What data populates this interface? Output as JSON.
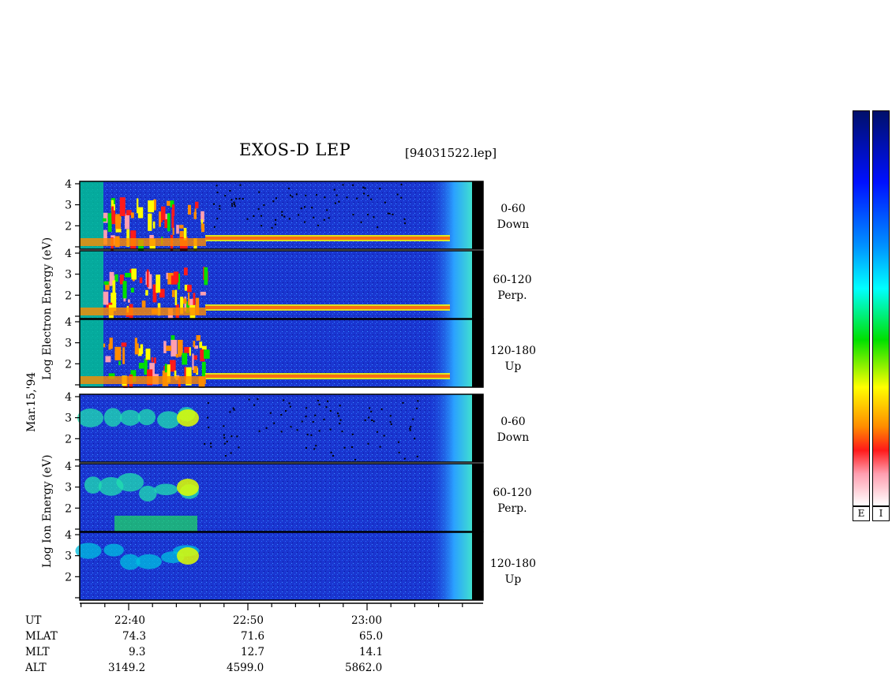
{
  "header": {
    "title": "EXOS-D LEP",
    "file": "[94031522.lep]"
  },
  "axis_labels": {
    "electron": "Log   Electron   Energy  (eV)",
    "ion": "Log   Ion   Energy  (eV)",
    "date": "Mar.15,'94"
  },
  "panels": [
    {
      "line1": "0-60",
      "line2": "Down"
    },
    {
      "line1": "60-120",
      "line2": "Perp."
    },
    {
      "line1": "120-180",
      "line2": "Up"
    },
    {
      "line1": "0-60",
      "line2": "Down"
    },
    {
      "line1": "60-120",
      "line2": "Perp."
    },
    {
      "line1": "120-180",
      "line2": "Up"
    }
  ],
  "ephemeris": {
    "labels": [
      "UT",
      "MLAT",
      "MLT",
      "ALT"
    ],
    "columns": [
      {
        "UT": "22:40",
        "MLAT": "74.3",
        "MLT": "9.3",
        "ALT": "3149.2"
      },
      {
        "UT": "22:50",
        "MLAT": "71.6",
        "MLT": "12.7",
        "ALT": "4599.0"
      },
      {
        "UT": "23:00",
        "MLAT": "65.0",
        "MLT": "14.1",
        "ALT": "5862.0"
      }
    ]
  },
  "colorbars": {
    "e_label": "E",
    "i_label": "I"
  },
  "colors": {
    "scale": [
      "#ffffff",
      "#ff9fb0",
      "#ff1a1a",
      "#ff8c00",
      "#ffff00",
      "#00e000",
      "#00ffff",
      "#0090ff",
      "#0010ff",
      "#000060"
    ],
    "background": "#1530d0"
  },
  "chart_data": {
    "type": "heatmap",
    "title": "EXOS-D LEP",
    "x": {
      "label": "UT",
      "ticks": [
        "22:40",
        "22:50",
        "23:00"
      ],
      "range": [
        "22:36",
        "23:10"
      ]
    },
    "y": {
      "scale": "log",
      "range": [
        1,
        4
      ],
      "ticks": [
        2,
        3,
        4
      ]
    },
    "panels": [
      {
        "species": "electron",
        "pitch_angle": "0-60",
        "direction": "Down"
      },
      {
        "species": "electron",
        "pitch_angle": "60-120",
        "direction": "Perp."
      },
      {
        "species": "electron",
        "pitch_angle": "120-180",
        "direction": "Up"
      },
      {
        "species": "ion",
        "pitch_angle": "0-60",
        "direction": "Down"
      },
      {
        "species": "ion",
        "pitch_angle": "60-120",
        "direction": "Perp."
      },
      {
        "species": "ion",
        "pitch_angle": "120-180",
        "direction": "Up"
      }
    ],
    "legend": {
      "position": "right",
      "colorbars": [
        "E",
        "I"
      ]
    }
  }
}
